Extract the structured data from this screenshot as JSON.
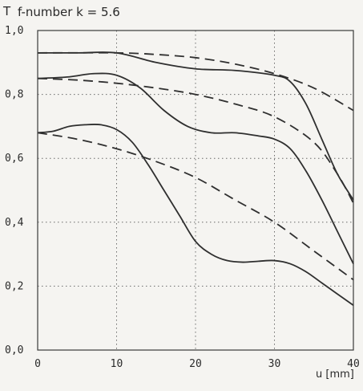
{
  "chart_data": {
    "type": "line",
    "title": "f-number k = 5.6",
    "ylabel": "T",
    "xlabel": "u [mm]",
    "xlim": [
      0,
      40
    ],
    "ylim": [
      0,
      1.0
    ],
    "x_ticks": [
      "0",
      "10",
      "20",
      "30",
      "40"
    ],
    "y_ticks": [
      "0,0",
      "0,2",
      "0,4",
      "0,6",
      "0,8",
      "1,0"
    ],
    "grid": true,
    "series": [
      {
        "style": "solid",
        "x": [
          0,
          5,
          10,
          15,
          20,
          25,
          30,
          32,
          34,
          36,
          38,
          40
        ],
        "y": [
          0.93,
          0.93,
          0.93,
          0.9,
          0.88,
          0.875,
          0.86,
          0.84,
          0.77,
          0.66,
          0.55,
          0.47
        ]
      },
      {
        "style": "dashed",
        "x": [
          0,
          10,
          15,
          20,
          25,
          30,
          35,
          40
        ],
        "y": [
          0.93,
          0.93,
          0.925,
          0.915,
          0.895,
          0.865,
          0.82,
          0.75
        ]
      },
      {
        "style": "solid",
        "x": [
          0,
          4,
          7,
          10,
          13,
          16,
          19,
          22,
          25,
          28,
          30,
          32,
          34,
          36,
          38,
          40
        ],
        "y": [
          0.85,
          0.855,
          0.865,
          0.86,
          0.82,
          0.75,
          0.7,
          0.68,
          0.68,
          0.67,
          0.66,
          0.63,
          0.56,
          0.47,
          0.37,
          0.27
        ]
      },
      {
        "style": "dashed",
        "x": [
          0,
          5,
          10,
          15,
          20,
          25,
          30,
          35,
          38,
          40
        ],
        "y": [
          0.85,
          0.845,
          0.835,
          0.82,
          0.8,
          0.77,
          0.73,
          0.65,
          0.55,
          0.46
        ]
      },
      {
        "style": "solid",
        "x": [
          0,
          2,
          4,
          6,
          8,
          10,
          12,
          14,
          16,
          18,
          20,
          22,
          24,
          26,
          28,
          30,
          32,
          34,
          36,
          38,
          40
        ],
        "y": [
          0.68,
          0.685,
          0.7,
          0.705,
          0.705,
          0.69,
          0.65,
          0.58,
          0.5,
          0.42,
          0.34,
          0.3,
          0.28,
          0.275,
          0.278,
          0.28,
          0.27,
          0.245,
          0.21,
          0.175,
          0.14
        ]
      },
      {
        "style": "dashed",
        "x": [
          0,
          5,
          10,
          15,
          20,
          25,
          30,
          35,
          40
        ],
        "y": [
          0.68,
          0.66,
          0.63,
          0.59,
          0.54,
          0.47,
          0.4,
          0.31,
          0.22
        ]
      }
    ]
  }
}
